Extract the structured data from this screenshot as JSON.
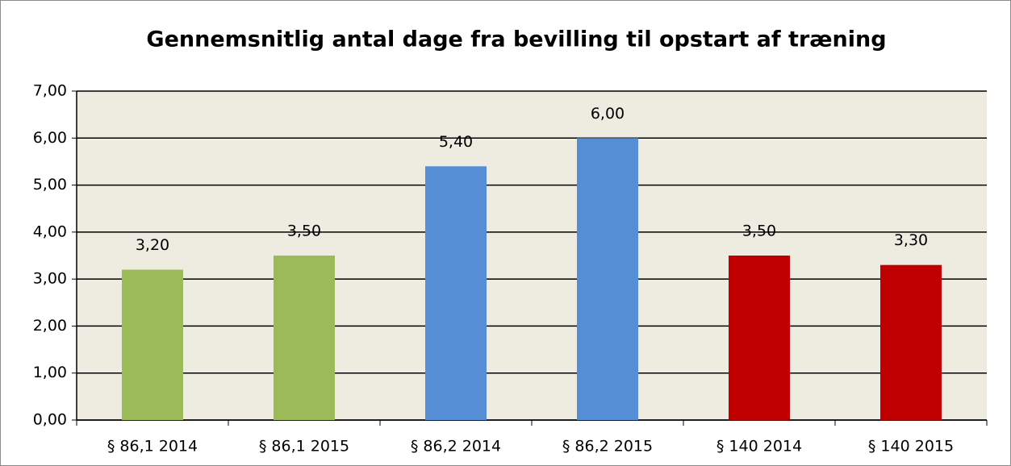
{
  "chart_data": {
    "type": "bar",
    "title": "Gennemsnitlig antal dage fra bevilling til opstart af træning",
    "categories": [
      "§ 86,1 2014",
      "§ 86,1 2015",
      "§ 86,2 2014",
      "§ 86,2 2015",
      "§ 140 2014",
      "§ 140 2015"
    ],
    "values": [
      3.2,
      3.5,
      5.4,
      6.0,
      3.5,
      3.3
    ],
    "value_labels": [
      "3,20",
      "3,50",
      "5,40",
      "6,00",
      "3,50",
      "3,30"
    ],
    "colors": [
      "#9bbb59",
      "#9bbb59",
      "#558ed5",
      "#558ed5",
      "#c00000",
      "#c00000"
    ],
    "ylim": [
      0,
      7
    ],
    "yticks": [
      {
        "value": 0,
        "label": "0,00"
      },
      {
        "value": 1,
        "label": "1,00"
      },
      {
        "value": 2,
        "label": "2,00"
      },
      {
        "value": 3,
        "label": "3,00"
      },
      {
        "value": 4,
        "label": "4,00"
      },
      {
        "value": 5,
        "label": "5,00"
      },
      {
        "value": 6,
        "label": "6,00"
      },
      {
        "value": 7,
        "label": "7,00"
      }
    ],
    "grid": true
  }
}
